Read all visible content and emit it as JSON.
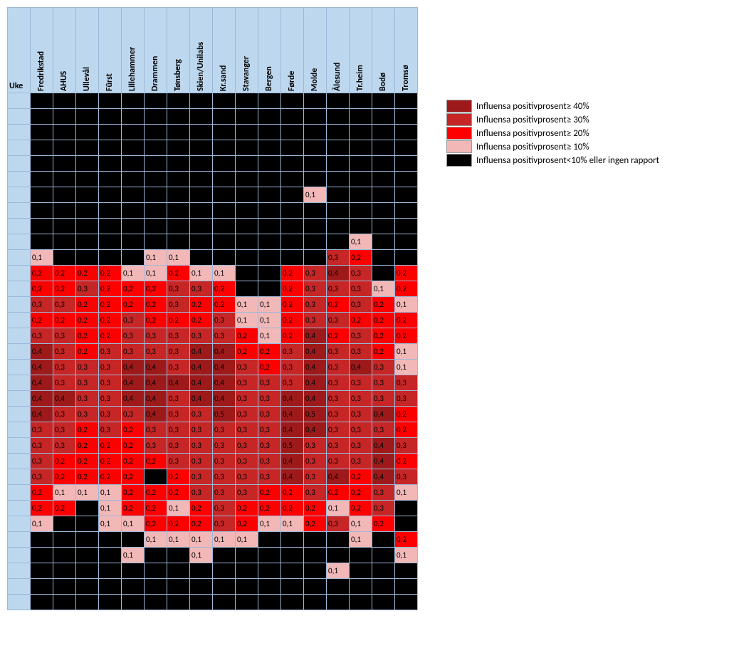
{
  "type": "heatmap",
  "header_bg": "#bdd7ee",
  "grid_color": "#9db8d9",
  "corner_label": "Uke",
  "columns": [
    "Fredrikstad",
    "AHUS",
    "Ullevål",
    "Fürst",
    "Lillehammer",
    "Drammen",
    "Tønsberg",
    "Skien/Unilabs",
    "Kr.sand",
    "Stavanger",
    "Bergen",
    "Førde",
    "Molde",
    "Ålesund",
    "Tr.heim",
    "Bodø",
    "Tromsø"
  ],
  "thresholds": [
    {
      "min": 0.4,
      "color": "#9e1a1a"
    },
    {
      "min": 0.3,
      "color": "#c62626"
    },
    {
      "min": 0.2,
      "color": "#ff0000"
    },
    {
      "min": 0.1,
      "color": "#f2b8b8"
    },
    {
      "min": 0,
      "color": "#000000"
    }
  ],
  "legend": [
    {
      "color": "#9e1a1a",
      "label": "Influensa positivprosent≥ 40%"
    },
    {
      "color": "#c62626",
      "label": "Influensa positivprosent≥  30%"
    },
    {
      "color": "#ff0000",
      "label": "Influensa positivprosent≥  20%"
    },
    {
      "color": "#f2b8b8",
      "label": "Influensa positivprosent≥  10%"
    },
    {
      "color": "#000000",
      "label": "Influensa positivprosent<10% eller ingen rapport"
    }
  ],
  "rows": [
    [
      null,
      null,
      null,
      null,
      null,
      null,
      null,
      null,
      null,
      null,
      null,
      null,
      null,
      null,
      null,
      null,
      null
    ],
    [
      null,
      null,
      null,
      null,
      null,
      null,
      null,
      null,
      null,
      null,
      null,
      null,
      null,
      null,
      null,
      null,
      null
    ],
    [
      null,
      null,
      null,
      null,
      null,
      null,
      null,
      null,
      null,
      null,
      null,
      null,
      null,
      null,
      null,
      null,
      null
    ],
    [
      null,
      null,
      null,
      null,
      null,
      null,
      null,
      null,
      null,
      null,
      null,
      null,
      null,
      null,
      null,
      null,
      null
    ],
    [
      null,
      null,
      null,
      null,
      null,
      null,
      null,
      null,
      null,
      null,
      null,
      null,
      null,
      null,
      null,
      null,
      null
    ],
    [
      null,
      null,
      null,
      null,
      null,
      null,
      null,
      null,
      null,
      null,
      null,
      null,
      null,
      null,
      null,
      null,
      null
    ],
    [
      null,
      null,
      null,
      null,
      null,
      null,
      null,
      null,
      null,
      null,
      null,
      null,
      0.1,
      null,
      null,
      null,
      null
    ],
    [
      null,
      null,
      null,
      null,
      null,
      null,
      null,
      null,
      null,
      null,
      null,
      null,
      null,
      null,
      null,
      null,
      null
    ],
    [
      null,
      null,
      null,
      null,
      null,
      null,
      null,
      null,
      null,
      null,
      null,
      null,
      null,
      null,
      null,
      null,
      null
    ],
    [
      null,
      null,
      null,
      null,
      null,
      null,
      null,
      null,
      null,
      null,
      null,
      null,
      null,
      null,
      0.1,
      null,
      null
    ],
    [
      0.1,
      null,
      null,
      null,
      null,
      0.1,
      0.1,
      null,
      null,
      null,
      null,
      null,
      null,
      0.3,
      0.2,
      null,
      null
    ],
    [
      0.2,
      0.2,
      0.2,
      0.2,
      0.1,
      0.1,
      0.2,
      0.1,
      0.1,
      null,
      null,
      0.2,
      0.3,
      0.4,
      0.3,
      null,
      0.2
    ],
    [
      0.2,
      0.2,
      0.3,
      0.2,
      0.2,
      0.2,
      0.3,
      0.3,
      0.2,
      null,
      null,
      0.2,
      0.3,
      0.3,
      0.3,
      0.1,
      0.2
    ],
    [
      0.3,
      0.3,
      0.2,
      0.2,
      0.2,
      0.2,
      0.3,
      0.2,
      0.2,
      0.1,
      0.1,
      0.2,
      0.3,
      0.2,
      0.3,
      0.2,
      0.1
    ],
    [
      0.2,
      0.2,
      0.2,
      0.2,
      0.3,
      0.2,
      0.2,
      0.2,
      0.3,
      0.1,
      0.1,
      0.2,
      0.3,
      0.3,
      0.2,
      0.2,
      0.2
    ],
    [
      0.3,
      0.3,
      0.2,
      0.2,
      0.3,
      0.3,
      0.3,
      0.3,
      0.3,
      0.2,
      0.1,
      0.2,
      0.4,
      0.2,
      0.3,
      0.2,
      0.2
    ],
    [
      0.4,
      0.3,
      0.2,
      0.3,
      0.3,
      0.3,
      0.3,
      0.4,
      0.4,
      0.2,
      0.2,
      0.3,
      0.4,
      0.3,
      0.3,
      0.2,
      0.1
    ],
    [
      0.4,
      0.3,
      0.3,
      0.3,
      0.4,
      0.4,
      0.3,
      0.4,
      0.4,
      0.3,
      0.2,
      0.3,
      0.4,
      0.3,
      0.4,
      0.3,
      0.1
    ],
    [
      0.4,
      0.3,
      0.3,
      0.3,
      0.4,
      0.4,
      0.4,
      0.4,
      0.4,
      0.3,
      0.3,
      0.3,
      0.4,
      0.3,
      0.3,
      0.3,
      0.3
    ],
    [
      0.4,
      0.4,
      0.3,
      0.3,
      0.4,
      0.4,
      0.3,
      0.4,
      0.4,
      0.3,
      0.3,
      0.4,
      0.4,
      0.3,
      0.3,
      0.3,
      0.3
    ],
    [
      0.4,
      0.3,
      0.3,
      0.3,
      0.3,
      0.4,
      0.3,
      0.3,
      0.5,
      0.3,
      0.3,
      0.4,
      0.5,
      0.3,
      0.3,
      0.4,
      0.2
    ],
    [
      0.3,
      0.3,
      0.2,
      0.3,
      0.2,
      0.3,
      0.3,
      0.3,
      0.3,
      0.3,
      0.3,
      0.4,
      0.4,
      0.3,
      0.3,
      0.3,
      0.2
    ],
    [
      0.3,
      0.3,
      0.2,
      0.2,
      0.2,
      0.3,
      0.3,
      0.3,
      0.3,
      0.3,
      0.3,
      0.5,
      0.3,
      0.3,
      0.3,
      0.4,
      0.3
    ],
    [
      0.3,
      0.2,
      0.2,
      0.2,
      0.2,
      0.2,
      0.3,
      0.3,
      0.3,
      0.3,
      0.3,
      0.4,
      0.3,
      0.3,
      0.3,
      0.4,
      0.2
    ],
    [
      0.3,
      0.2,
      0.2,
      0.2,
      0.2,
      null,
      0.2,
      0.3,
      0.3,
      0.3,
      0.3,
      0.4,
      0.3,
      0.4,
      0.2,
      0.4,
      0.3
    ],
    [
      0.2,
      0.1,
      0.1,
      0.1,
      0.2,
      0.2,
      0.2,
      0.3,
      0.3,
      0.3,
      0.2,
      0.2,
      0.3,
      0.2,
      0.2,
      0.3,
      0.1
    ],
    [
      0.2,
      0.2,
      null,
      0.1,
      0.2,
      0.2,
      0.1,
      0.2,
      0.3,
      0.2,
      0.2,
      0.2,
      0.2,
      0.1,
      0.2,
      0.3,
      null
    ],
    [
      0.1,
      null,
      null,
      0.1,
      0.1,
      0.2,
      0.2,
      0.2,
      0.3,
      0.2,
      0.1,
      0.1,
      0.2,
      0.3,
      0.1,
      0.2,
      null
    ],
    [
      null,
      null,
      null,
      null,
      null,
      0.1,
      0.1,
      0.1,
      0.1,
      0.1,
      null,
      null,
      null,
      null,
      0.1,
      null,
      0.2
    ],
    [
      null,
      null,
      null,
      null,
      0.1,
      null,
      null,
      0.1,
      null,
      null,
      null,
      null,
      null,
      null,
      null,
      null,
      0.1
    ],
    [
      null,
      null,
      null,
      null,
      null,
      null,
      null,
      null,
      null,
      null,
      null,
      null,
      null,
      0.1,
      null,
      null,
      null
    ],
    [
      null,
      null,
      null,
      null,
      null,
      null,
      null,
      null,
      null,
      null,
      null,
      null,
      null,
      null,
      null,
      null,
      null
    ],
    [
      null,
      null,
      null,
      null,
      null,
      null,
      null,
      null,
      null,
      null,
      null,
      null,
      null,
      null,
      null,
      null,
      null
    ]
  ]
}
